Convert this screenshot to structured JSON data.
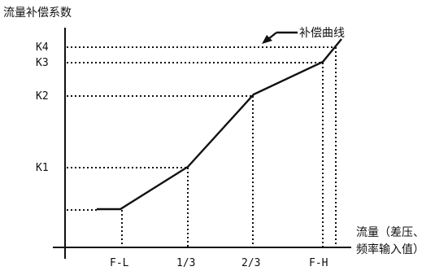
{
  "diagram": {
    "y_axis_title": "流量补偿系数",
    "x_axis_title_line1": "流量（差压、",
    "x_axis_title_line2": "频率输入值）",
    "curve_label": "补偿曲线",
    "y_ticks": [
      "K4",
      "K3",
      "K2",
      "K1"
    ],
    "x_ticks": [
      "F-L",
      "1/3",
      "2/3",
      "F-H"
    ],
    "line_color": "#111111",
    "background_color": "#ffffff"
  }
}
